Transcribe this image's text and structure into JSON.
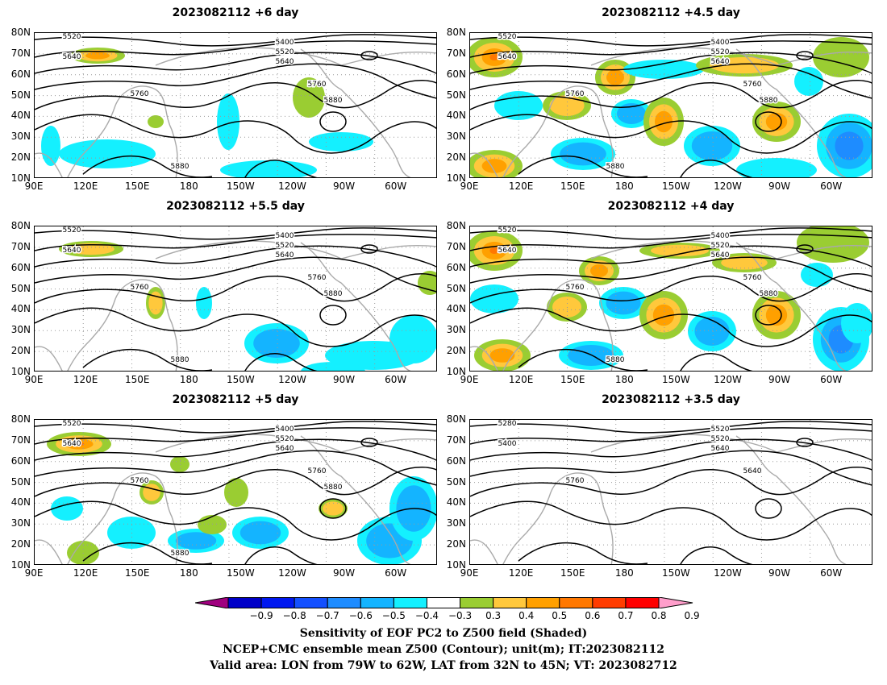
{
  "panels": [
    {
      "title": "2023082112  +6 day",
      "contours": [
        "5520",
        "5640",
        "5400",
        "5520",
        "5640",
        "5760",
        "5760",
        "5880",
        "5880"
      ],
      "intensity": 0.55
    },
    {
      "title": "2023082112  +4.5 day",
      "contours": [
        "5520",
        "5640",
        "5400",
        "5520",
        "5640",
        "5760",
        "5760",
        "5880",
        "5880"
      ],
      "intensity": 1.0
    },
    {
      "title": "2023082112  +5.5 day",
      "contours": [
        "5520",
        "5640",
        "5400",
        "5520",
        "5640",
        "5760",
        "5760",
        "5880",
        "5880"
      ],
      "intensity": 0.5
    },
    {
      "title": "2023082112  +4 day",
      "contours": [
        "5520",
        "5640",
        "5400",
        "5520",
        "5640",
        "5760",
        "5760",
        "5880",
        "5880"
      ],
      "intensity": 0.95
    },
    {
      "title": "2023082112  +5 day",
      "contours": [
        "5520",
        "5640",
        "5400",
        "5520",
        "5640",
        "5760",
        "5760",
        "5880",
        "5880"
      ],
      "intensity": 0.7
    },
    {
      "title": "2023082112  +3.5 day",
      "contours": [
        "5280",
        "5400",
        "5520",
        "5520",
        "5640",
        "5640",
        "5760"
      ],
      "intensity": 0
    }
  ],
  "lat_labels": [
    "80N",
    "70N",
    "60N",
    "50N",
    "40N",
    "30N",
    "20N",
    "10N"
  ],
  "lon_labels": [
    "90E",
    "120E",
    "150E",
    "180",
    "150W",
    "120W",
    "90W",
    "60W"
  ],
  "colorbar": {
    "ticks": [
      "−0.9",
      "−0.8",
      "−0.7",
      "−0.6",
      "−0.5",
      "−0.4",
      "−0.3",
      "0.3",
      "0.4",
      "0.5",
      "0.6",
      "0.7",
      "0.8",
      "0.9"
    ],
    "colors": [
      "#a0007f",
      "#0000c8",
      "#0018f0",
      "#1450ff",
      "#1e8cff",
      "#14b4ff",
      "#14f0ff",
      "#ffffff",
      "#9acd32",
      "#ffc83c",
      "#ffa000",
      "#ff7800",
      "#ff3c00",
      "#ff0000",
      "#ff9ecb"
    ]
  },
  "captions": [
    "Sensitivity of EOF PC2 to Z500 field (Shaded)",
    "NCEP+CMC ensemble mean Z500 (Contour); unit(m); IT:2023082112",
    "Valid area: LON from 79W to 62W, LAT from 32N to 45N; VT: 2023082712"
  ]
}
